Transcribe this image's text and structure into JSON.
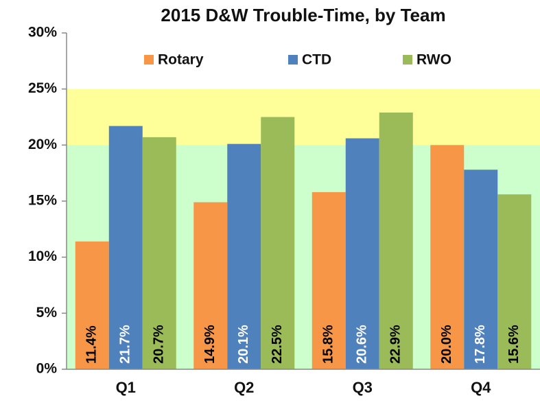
{
  "chart_data": {
    "type": "bar",
    "title": "2015 D&W Trouble-Time, by Team",
    "categories": [
      "Q1",
      "Q2",
      "Q3",
      "Q4"
    ],
    "series": [
      {
        "name": "Rotary",
        "color": "#f79646",
        "label_color": "#000000",
        "values": [
          11.4,
          14.9,
          15.8,
          20.0
        ],
        "value_labels": [
          "11.4%",
          "14.9%",
          "15.8%",
          "20.0%"
        ]
      },
      {
        "name": "CTD",
        "color": "#4f81bd",
        "label_color": "#ffffff",
        "values": [
          21.7,
          20.1,
          20.6,
          17.8
        ],
        "value_labels": [
          "21.7%",
          "20.1%",
          "20.6%",
          "17.8%"
        ]
      },
      {
        "name": "RWO",
        "color": "#9bbb59",
        "label_color": "#000000",
        "values": [
          20.7,
          22.5,
          22.9,
          15.6
        ],
        "value_labels": [
          "20.7%",
          "22.5%",
          "22.9%",
          "15.6%"
        ]
      }
    ],
    "bands": [
      {
        "from": 20,
        "to": 25,
        "color": "#ffff99"
      },
      {
        "from": 0,
        "to": 20,
        "color": "#ccffcc"
      }
    ],
    "ylim": [
      0,
      30
    ],
    "yticks": [
      {
        "value": 0,
        "label": "0%"
      },
      {
        "value": 5,
        "label": "5%"
      },
      {
        "value": 10,
        "label": "10%"
      },
      {
        "value": 15,
        "label": "15%"
      },
      {
        "value": 20,
        "label": "20%"
      },
      {
        "value": 25,
        "label": "25%"
      },
      {
        "value": 30,
        "label": "30%"
      }
    ],
    "legend": "top"
  }
}
